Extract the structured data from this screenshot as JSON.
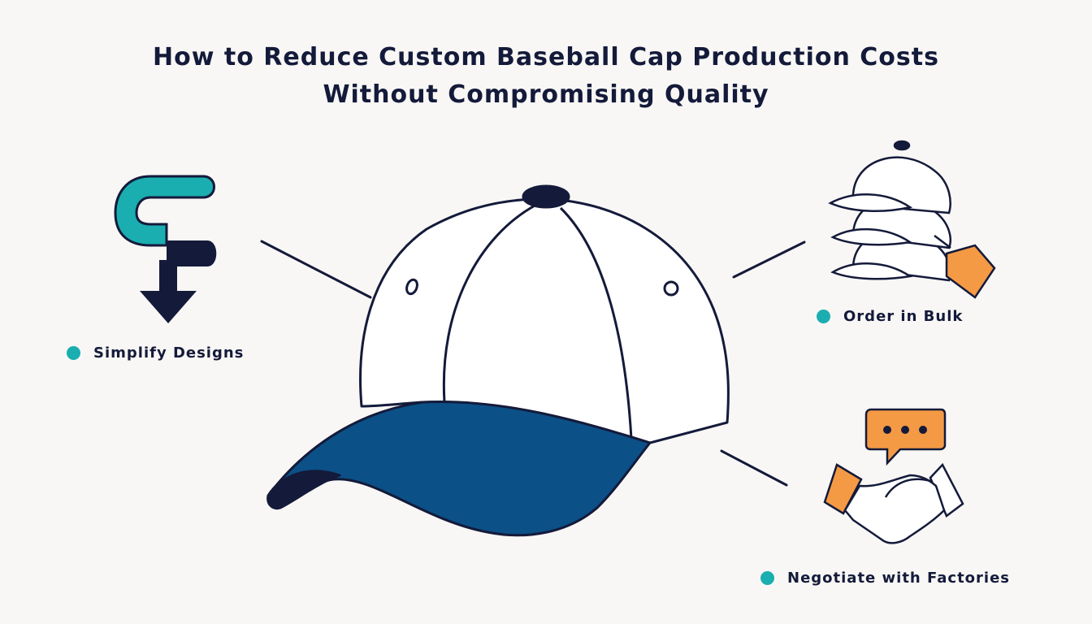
{
  "header": {
    "title": "How to Reduce Custom Baseball Cap Production Costs Without Compromising Quality"
  },
  "tips": [
    {
      "label": "Simplify Designs"
    },
    {
      "label": "Order in Bulk"
    },
    {
      "label": "Negotiate with Factories"
    }
  ]
}
